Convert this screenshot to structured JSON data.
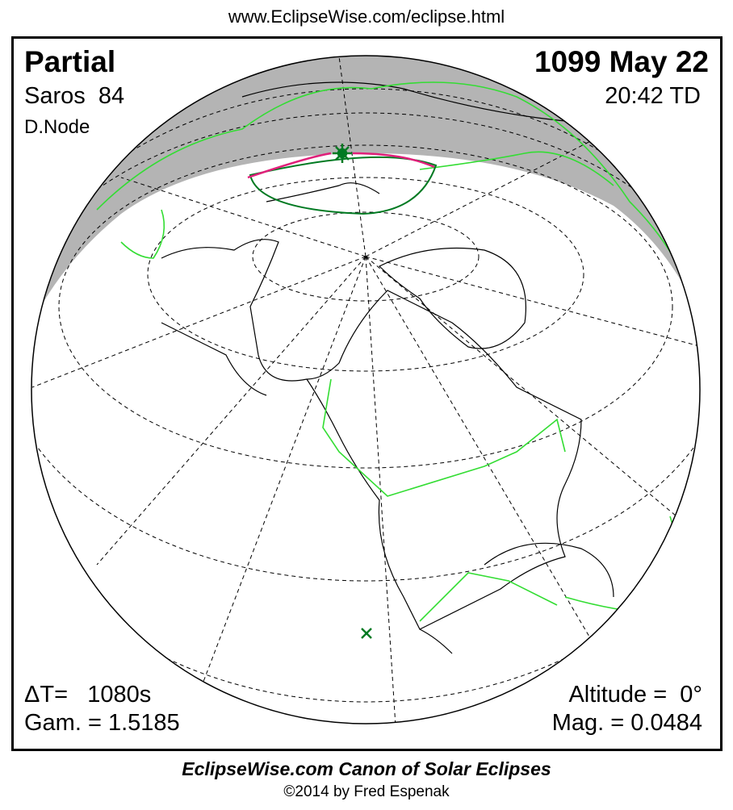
{
  "header": {
    "url": "www.EclipseWise.com/eclipse.html"
  },
  "eclipse": {
    "type": "Partial",
    "date": "1099 May 22",
    "saros": "Saros  84",
    "time": "20:42 TD",
    "node": "D.Node",
    "delta_t": "ΔT=   1080s",
    "altitude": "Altitude =  0°",
    "gamma": "Gam. = 1.5185",
    "magnitude": "Mag. = 0.0484"
  },
  "map": {
    "projection": "orthographic",
    "colors": {
      "penumbra_shade": "#b4b4b4",
      "borders": "#33dd33",
      "coast": "#000000",
      "eclipse_limit": "#007a22",
      "path_edge": "#e0207a",
      "max_eclipse_marker": "#007a22"
    },
    "markers": [
      {
        "name": "greatest-eclipse",
        "icon": "star-burst"
      },
      {
        "name": "sub-solar",
        "icon": "x-mark"
      }
    ]
  },
  "footer": {
    "title": "EclipseWise.com Canon of Solar Eclipses",
    "copyright": "©2014 by Fred Espenak"
  }
}
